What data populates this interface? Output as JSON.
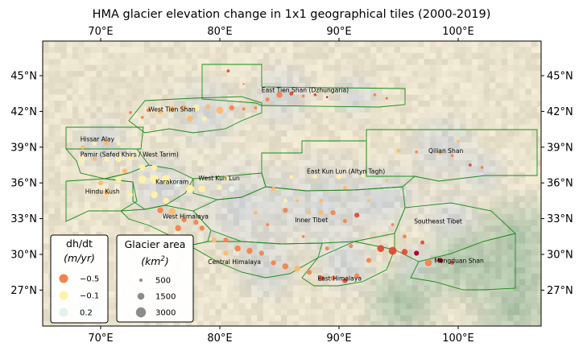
{
  "title": "HMA glacier elevation change in 1x1 geographical tiles (2000-2019)",
  "x_ticks": [
    {
      "label": "70°E",
      "lon": 70
    },
    {
      "label": "80°E",
      "lon": 80
    },
    {
      "label": "90°E",
      "lon": 90
    },
    {
      "label": "100°E",
      "lon": 100
    }
  ],
  "y_ticks": [
    {
      "label": "45°N",
      "lat": 45
    },
    {
      "label": "42°N",
      "lat": 42
    },
    {
      "label": "39°N",
      "lat": 39
    },
    {
      "label": "36°N",
      "lat": 36
    },
    {
      "label": "33°N",
      "lat": 33
    },
    {
      "label": "30°N",
      "lat": 30
    },
    {
      "label": "27°N",
      "lat": 27
    }
  ],
  "region_labels": [
    {
      "text": "East Tien Shan (Dzhungaria)",
      "lon": 83.5,
      "lat": 43.6
    },
    {
      "text": "West Tien Shan",
      "lon": 74,
      "lat": 42
    },
    {
      "text": "Hissar Alay",
      "lon": 68.3,
      "lat": 39.5
    },
    {
      "text": "Pamir (Safed Khirs / West Tarim)",
      "lon": 68.3,
      "lat": 38.2
    },
    {
      "text": "Qilian Shan",
      "lon": 97.5,
      "lat": 38.5
    },
    {
      "text": "East Kun Lun (Altyn Tagh)",
      "lon": 87.3,
      "lat": 36.8
    },
    {
      "text": "Hindu Kush",
      "lon": 68.7,
      "lat": 35.1
    },
    {
      "text": "Karakoram",
      "lon": 74.6,
      "lat": 35.9
    },
    {
      "text": "West Kun Lun",
      "lon": 78.2,
      "lat": 36.2
    },
    {
      "text": "West Himalaya",
      "lon": 75.2,
      "lat": 33
    },
    {
      "text": "Inner Tibet",
      "lon": 86.3,
      "lat": 32.7
    },
    {
      "text": "Southeast Tibet",
      "lon": 96.3,
      "lat": 32.6
    },
    {
      "text": "Central Himalaya",
      "lon": 79,
      "lat": 29.2
    },
    {
      "text": "Mengduan Shan",
      "lon": 98,
      "lat": 29.3
    },
    {
      "text": "East Himalaya",
      "lon": 88.2,
      "lat": 27.8
    }
  ],
  "legend_dhdt": {
    "title": "dh/dt",
    "unit": "(m/yr)",
    "items": [
      {
        "label": "−0.5",
        "value": -0.5,
        "color": "#f4844c"
      },
      {
        "label": "−0.1",
        "value": -0.1,
        "color": "#fff1a8"
      },
      {
        "label": "0.2",
        "value": 0.2,
        "color": "#e2f2ee"
      }
    ]
  },
  "legend_area": {
    "title": "Glacier area",
    "unit_base": "(km",
    "unit_exp": "2",
    "unit_end": ")",
    "items": [
      {
        "label": "500",
        "value": 500
      },
      {
        "label": "1500",
        "value": 1500
      },
      {
        "label": "3000",
        "value": 3000
      }
    ]
  },
  "colors": {
    "region_outline": "#1a8c1a",
    "very_negative": "#a50026",
    "negative": "#e34a33",
    "moderate": "#f4844c",
    "slight": "#fdbb6c",
    "near_zero": "#fff1a8",
    "positive": "#e2f2ee"
  }
}
